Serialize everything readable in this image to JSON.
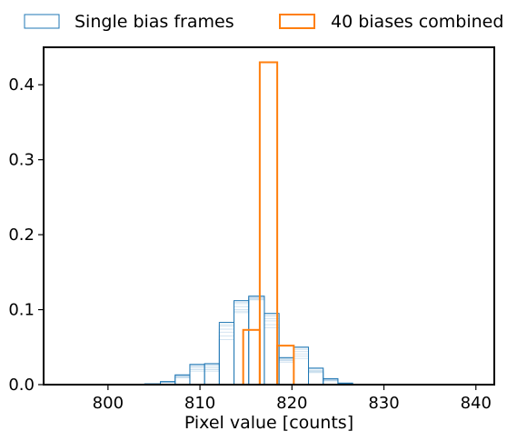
{
  "chart_data": {
    "type": "histogram",
    "title": "",
    "xlabel": "Pixel value [counts]",
    "ylabel": "",
    "xlim": [
      793,
      842
    ],
    "ylim": [
      0,
      0.45
    ],
    "xticks": [
      800,
      810,
      820,
      830,
      840
    ],
    "yticks": [
      0.0,
      0.1,
      0.2,
      0.3,
      0.4
    ],
    "xtick_labels": [
      "800",
      "810",
      "820",
      "830",
      "840"
    ],
    "ytick_labels": [
      "0.0",
      "0.1",
      "0.2",
      "0.3",
      "0.4"
    ],
    "legend_placement": "top-outside",
    "grid": false,
    "series": [
      {
        "name": "Single bias frames",
        "color": "#1f77b4",
        "style": "step-outline-filled",
        "bin_edges": [
          804,
          805.7,
          807.3,
          808.9,
          810.5,
          812.1,
          813.7,
          815.3,
          817.0,
          818.6,
          820.2,
          821.8,
          823.4,
          825.0,
          826.6,
          828.2,
          829.9
        ],
        "values": [
          0.001,
          0.004,
          0.013,
          0.027,
          0.028,
          0.083,
          0.112,
          0.118,
          0.095,
          0.036,
          0.05,
          0.022,
          0.008,
          0.002,
          0.0005,
          0.0002
        ]
      },
      {
        "name": "40 biases combined",
        "color": "#ff7f0e",
        "style": "step-outline",
        "bin_edges": [
          814.7,
          816.5,
          818.4,
          820.2
        ],
        "values": [
          0.073,
          0.43,
          0.052
        ]
      }
    ],
    "faint_frames": [
      [
        0.001,
        0.003,
        0.009,
        0.018,
        0.018,
        0.06,
        0.096,
        0.113,
        0.076,
        0.03,
        0.035,
        0.016,
        0.005,
        0.001,
        0.0003,
        0.0001
      ],
      [
        0.001,
        0.003,
        0.01,
        0.02,
        0.02,
        0.065,
        0.098,
        0.114,
        0.08,
        0.032,
        0.038,
        0.017,
        0.006,
        0.001,
        0.0003,
        0.0001
      ],
      [
        0.001,
        0.004,
        0.011,
        0.022,
        0.022,
        0.07,
        0.1,
        0.115,
        0.085,
        0.033,
        0.041,
        0.018,
        0.006,
        0.002,
        0.0004,
        0.0001
      ],
      [
        0.001,
        0.004,
        0.012,
        0.024,
        0.024,
        0.074,
        0.104,
        0.116,
        0.088,
        0.034,
        0.044,
        0.019,
        0.007,
        0.002,
        0.0004,
        0.0002
      ],
      [
        0.001,
        0.004,
        0.012,
        0.025,
        0.026,
        0.078,
        0.108,
        0.117,
        0.091,
        0.035,
        0.047,
        0.021,
        0.007,
        0.002,
        0.0004,
        0.0002
      ],
      [
        0.001,
        0.004,
        0.013,
        0.026,
        0.027,
        0.08,
        0.11,
        0.118,
        0.093,
        0.036,
        0.049,
        0.022,
        0.008,
        0.002,
        0.0005,
        0.0002
      ]
    ]
  }
}
